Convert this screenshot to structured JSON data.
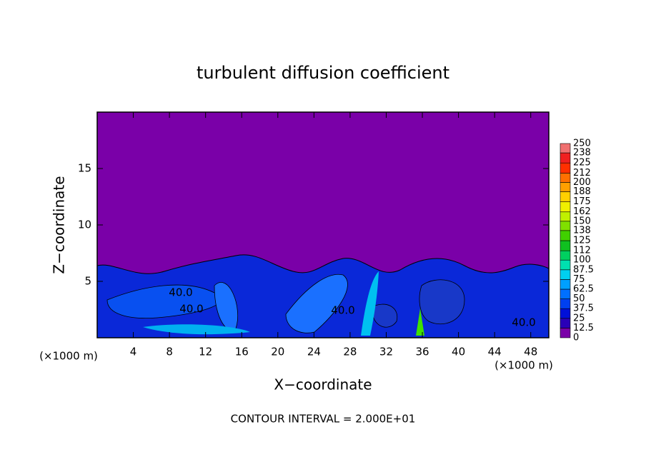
{
  "chart_data": {
    "type": "contour",
    "title": "turbulent diffusion coefficient",
    "xlabel": "X−coordinate",
    "ylabel": "Z−coordinate",
    "unit_labels": [
      "(×1000 m)",
      "(×1000 m)"
    ],
    "footnote": "CONTOUR INTERVAL = 2.000E+01",
    "xlim": [
      0,
      50
    ],
    "xticks": [
      4,
      8,
      12,
      16,
      20,
      24,
      28,
      32,
      36,
      40,
      44,
      48
    ],
    "ylim": [
      0,
      20
    ],
    "yticks": [
      5,
      10,
      15
    ],
    "contour_labels": [
      "40.0",
      "40.0",
      "40.0",
      "40.0"
    ],
    "colorbar": {
      "levels": [
        0,
        12.5,
        25,
        37.5,
        50,
        62.5,
        75,
        87.5,
        100,
        112,
        125,
        138,
        150,
        162,
        175,
        188,
        200,
        212,
        225,
        238,
        250
      ],
      "colors": [
        "#7a00a8",
        "#2a00b8",
        "#0010d8",
        "#0040f0",
        "#0070ff",
        "#00a0ff",
        "#00d0f0",
        "#00e0b0",
        "#00d060",
        "#10c020",
        "#40d000",
        "#80e000",
        "#c0f000",
        "#f0f000",
        "#ffd000",
        "#ffa000",
        "#ff7000",
        "#ff3000",
        "#f02020",
        "#f07070"
      ]
    }
  }
}
